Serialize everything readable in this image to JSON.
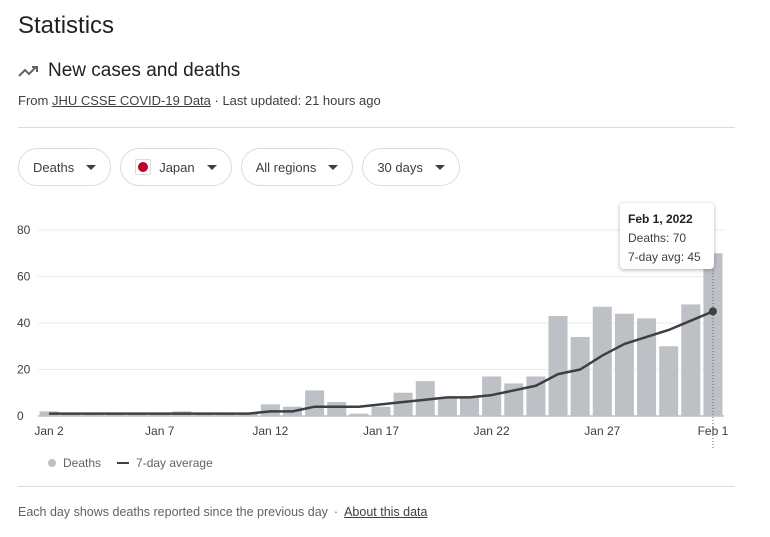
{
  "title": "Statistics",
  "subtitle": "New cases and deaths",
  "source": {
    "prefix": "From ",
    "link": "JHU CSSE COVID-19 Data",
    "suffix": " · Last updated: 21 hours ago"
  },
  "filters": [
    {
      "label": "Deaths"
    },
    {
      "label": "Japan"
    },
    {
      "label": "All regions"
    },
    {
      "label": "30 days"
    }
  ],
  "tooltip": {
    "date": "Feb 1, 2022",
    "deaths": "Deaths: 70",
    "avg": "7-day avg: 45"
  },
  "legend": {
    "bars": "Deaths",
    "line": "7-day average"
  },
  "footer": {
    "text": "Each day shows deaths reported since the previous day",
    "separator": "·",
    "link": "About this data"
  },
  "colors": {
    "bar": "#bdc1c6",
    "line": "#3c4043",
    "japan_flag": "#bc002d"
  },
  "chart_data": {
    "type": "bar",
    "categories": [
      "Jan 2",
      "Jan 3",
      "Jan 4",
      "Jan 5",
      "Jan 6",
      "Jan 7",
      "Jan 8",
      "Jan 9",
      "Jan 10",
      "Jan 11",
      "Jan 12",
      "Jan 13",
      "Jan 14",
      "Jan 15",
      "Jan 16",
      "Jan 17",
      "Jan 18",
      "Jan 19",
      "Jan 20",
      "Jan 21",
      "Jan 22",
      "Jan 23",
      "Jan 24",
      "Jan 25",
      "Jan 26",
      "Jan 27",
      "Jan 28",
      "Jan 29",
      "Jan 30",
      "Jan 31",
      "Feb 1"
    ],
    "xticks": [
      "Jan 2",
      "Jan 7",
      "Jan 12",
      "Jan 17",
      "Jan 22",
      "Jan 27",
      "Feb 1"
    ],
    "yticks": [
      0,
      20,
      40,
      60,
      80
    ],
    "ylim": [
      0,
      80
    ],
    "series": [
      {
        "name": "Deaths",
        "type": "bar",
        "values": [
          2,
          1,
          1,
          1,
          1,
          1,
          2,
          1,
          1,
          1,
          5,
          4,
          11,
          6,
          1,
          4,
          10,
          15,
          8,
          8,
          17,
          14,
          17,
          43,
          34,
          47,
          44,
          42,
          30,
          48,
          70
        ]
      },
      {
        "name": "7-day average",
        "type": "line",
        "values": [
          1,
          1,
          1,
          1,
          1,
          1,
          1,
          1,
          1,
          1,
          2,
          2,
          4,
          4,
          4,
          5,
          6,
          7,
          8,
          8,
          9,
          11,
          13,
          18,
          20,
          26,
          31,
          34,
          37,
          41,
          45
        ]
      }
    ],
    "highlight_index": 30,
    "grid": true
  }
}
